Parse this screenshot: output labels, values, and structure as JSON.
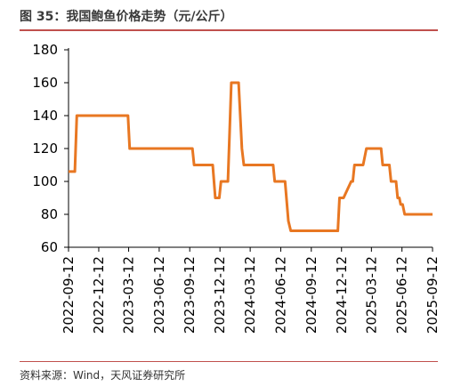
{
  "header": {
    "title": "图 35：我国鲍鱼价格走势（元/公斤）"
  },
  "footer": {
    "source": "资料来源：Wind，天风证券研究所"
  },
  "colors": {
    "line": "#e87722",
    "rule": "#c0504d",
    "axis": "#000000"
  },
  "chart_data": {
    "type": "line",
    "title": "",
    "xlabel": "",
    "ylabel": "",
    "ylim": [
      60,
      180
    ],
    "yticks": [
      60,
      80,
      100,
      120,
      140,
      160,
      180
    ],
    "xlim": [
      "2022-09-12",
      "2025-09-12"
    ],
    "xticks": [
      "2022-09-12",
      "2022-12-12",
      "2023-03-12",
      "2023-06-12",
      "2023-09-12",
      "2023-12-12",
      "2024-03-12",
      "2024-06-12",
      "2024-09-12",
      "2024-12-12",
      "2025-03-12",
      "2025-06-12",
      "2025-09-12"
    ],
    "grid": false,
    "legend": "none",
    "series": [
      {
        "x": [
          "2022-09-01",
          "2022-10-01",
          "2022-10-07",
          "2022-10-15",
          "2023-03-10",
          "2023-03-15",
          "2023-09-20",
          "2023-09-25",
          "2023-11-20",
          "2023-11-28",
          "2023-12-10",
          "2023-12-15",
          "2024-01-05",
          "2024-01-15",
          "2024-02-06",
          "2024-02-16",
          "2024-02-22",
          "2024-02-28",
          "2024-03-05",
          "2024-05-20",
          "2024-05-25",
          "2024-06-25",
          "2024-07-05",
          "2024-07-12",
          "2024-12-01",
          "2024-12-06",
          "2024-12-18",
          "2025-01-10",
          "2025-01-15",
          "2025-01-20",
          "2025-02-15",
          "2025-02-25",
          "2025-04-10",
          "2025-04-15",
          "2025-05-05",
          "2025-05-10",
          "2025-05-25",
          "2025-05-30",
          "2025-06-04",
          "2025-06-08",
          "2025-06-14",
          "2025-06-20",
          "2025-09-12"
        ],
        "values": [
          106,
          106,
          140,
          140,
          140,
          120,
          120,
          110,
          110,
          90,
          90,
          100,
          100,
          160,
          160,
          120,
          110,
          110,
          110,
          110,
          100,
          100,
          76,
          70,
          70,
          90,
          90,
          100,
          100,
          110,
          110,
          120,
          120,
          110,
          110,
          100,
          100,
          90,
          90,
          86,
          86,
          80,
          80
        ]
      }
    ]
  }
}
